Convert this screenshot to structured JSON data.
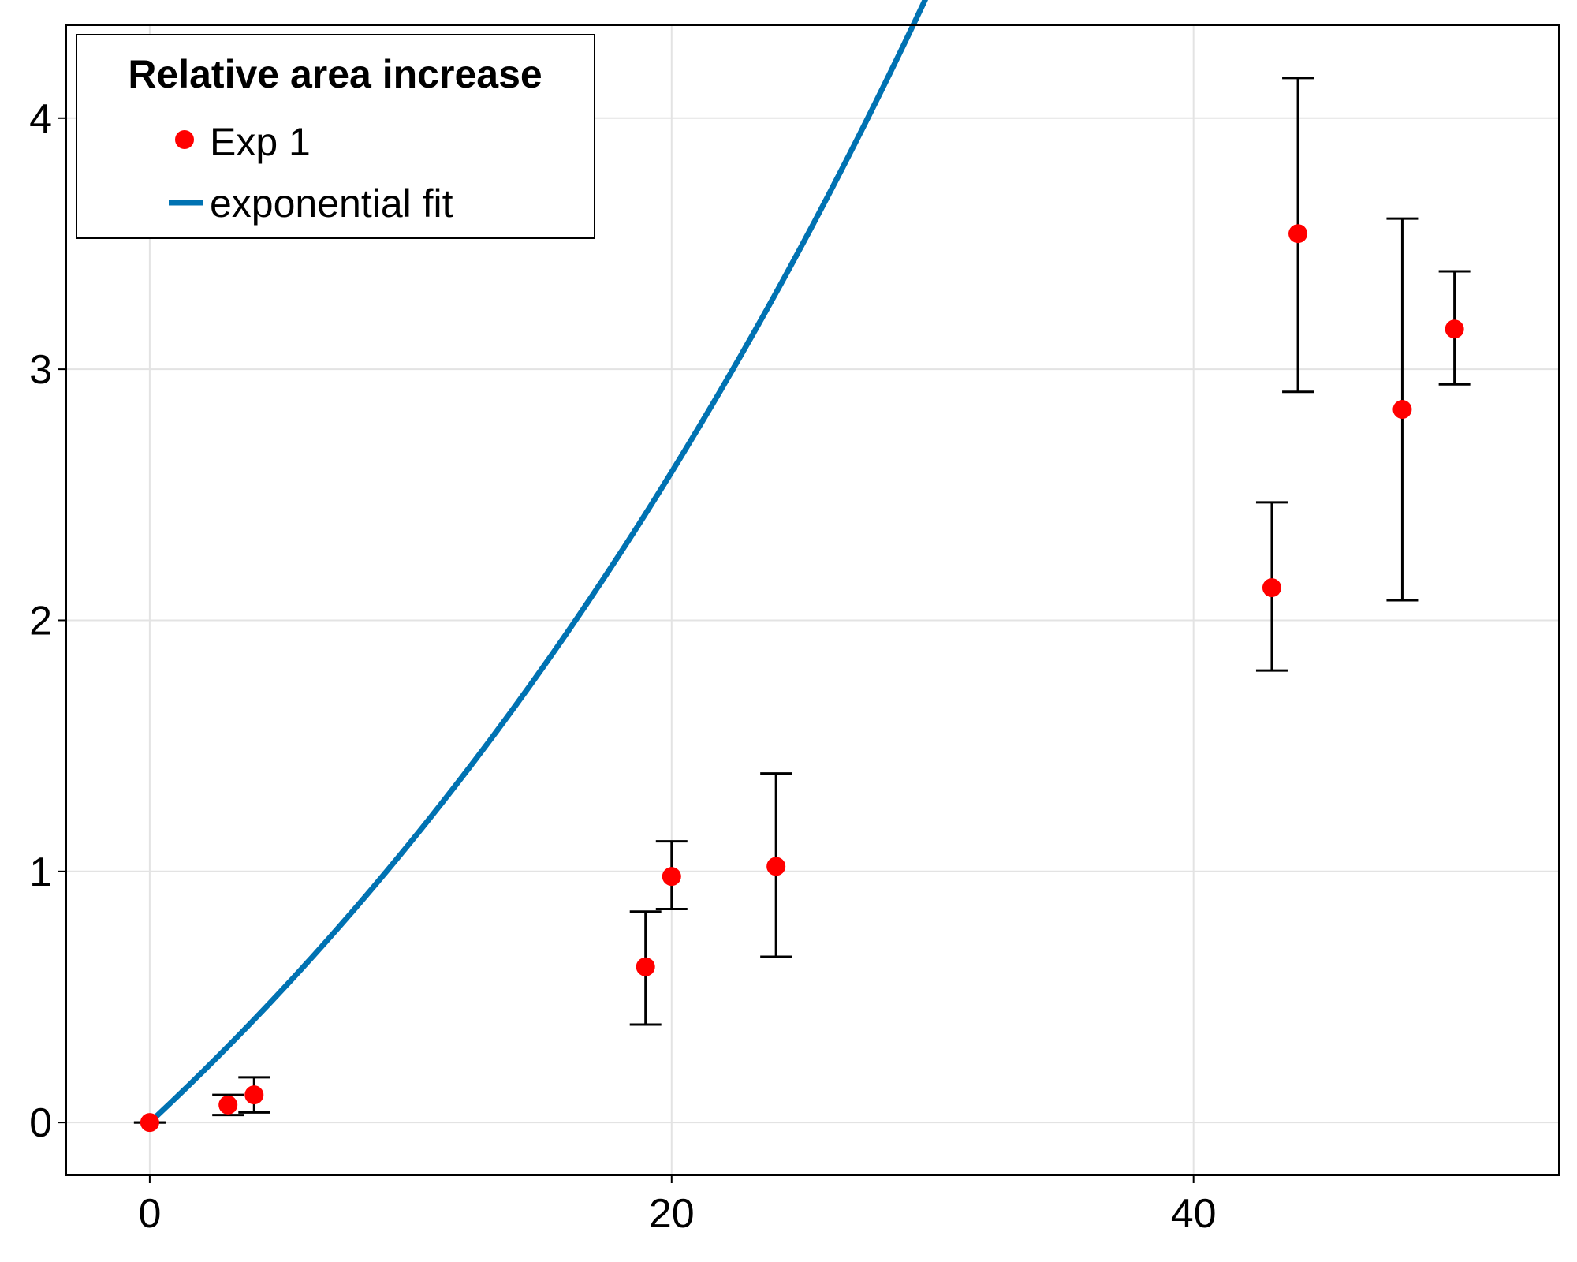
{
  "chart_data": {
    "type": "scatter",
    "title": "",
    "xlabel": "",
    "ylabel": "",
    "xlim": [
      -3.2,
      54
    ],
    "ylim": [
      -0.21,
      4.37
    ],
    "xticks": [
      0,
      20,
      40
    ],
    "yticks": [
      0,
      1,
      2,
      3,
      4
    ],
    "grid": true,
    "legend": {
      "title": "Relative area increase",
      "placement": "top-left",
      "entries": [
        {
          "label": "Exp 1",
          "marker": "circle",
          "color": "#ff0000"
        },
        {
          "label": "exponential fit",
          "marker": "line",
          "color": "#0072b2"
        }
      ]
    },
    "series": [
      {
        "name": "Exp 1",
        "kind": "scatter-errorbar",
        "color": "#ff0000",
        "points": [
          {
            "x": 0,
            "y": 0.0,
            "err_low": 0.0,
            "err_high": 0.0
          },
          {
            "x": 3,
            "y": 0.07,
            "err_low": 0.03,
            "err_high": 0.11
          },
          {
            "x": 4,
            "y": 0.11,
            "err_low": 0.04,
            "err_high": 0.18
          },
          {
            "x": 19,
            "y": 0.62,
            "err_low": 0.39,
            "err_high": 0.84
          },
          {
            "x": 20,
            "y": 0.98,
            "err_low": 0.85,
            "err_high": 1.12
          },
          {
            "x": 24,
            "y": 1.02,
            "err_low": 0.66,
            "err_high": 1.39
          },
          {
            "x": 43,
            "y": 2.13,
            "err_low": 1.8,
            "err_high": 2.47
          },
          {
            "x": 44,
            "y": 3.54,
            "err_low": 2.91,
            "err_high": 4.16
          },
          {
            "x": 48,
            "y": 2.84,
            "err_low": 2.08,
            "err_high": 3.6
          },
          {
            "x": 50,
            "y": 3.16,
            "err_low": 2.94,
            "err_high": 3.39
          }
        ]
      },
      {
        "name": "exponential fit",
        "kind": "line",
        "color": "#0072b2",
        "x_range": [
          0,
          52
        ],
        "model": "y = A*(exp(k*x) - 1)",
        "A": 3.5,
        "k": 0.0277
      }
    ]
  }
}
